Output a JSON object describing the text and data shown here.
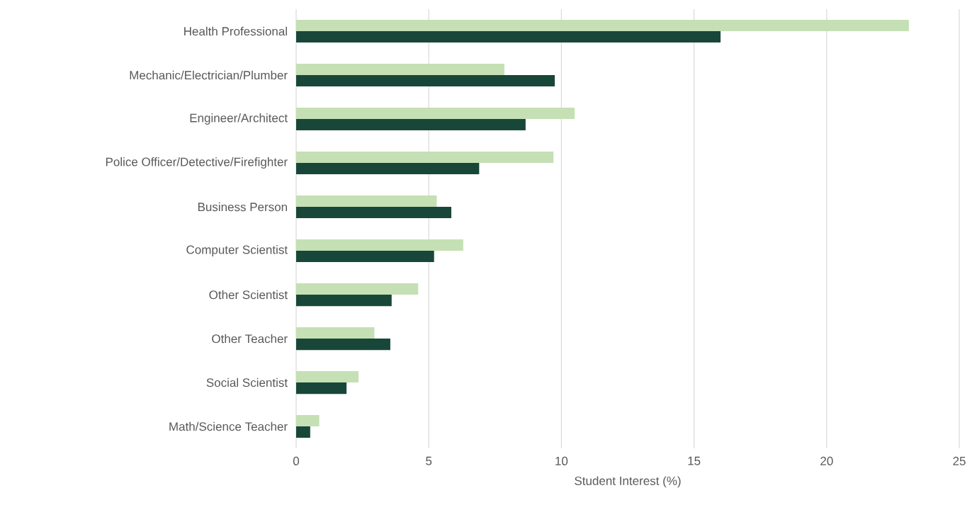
{
  "chart_data": {
    "type": "bar",
    "orientation": "horizontal",
    "xlabel": "Student Interest (%)",
    "categories": [
      "Health Professional",
      "Mechanic/Electrician/Plumber",
      "Engineer/Architect",
      "Police Officer/Detective/Firefighter",
      "Business Person",
      "Computer Scientist",
      "Other Scientist",
      "Other Teacher",
      "Social Scientist",
      "Math/Science Teacher"
    ],
    "series": [
      {
        "color": "#c5e0b4",
        "values": [
          23.1,
          7.85,
          10.5,
          9.7,
          5.3,
          6.3,
          4.6,
          2.95,
          2.35,
          0.87
        ]
      },
      {
        "color": "#18473a",
        "values": [
          16.0,
          9.75,
          8.65,
          6.9,
          5.85,
          5.2,
          3.6,
          3.55,
          1.9,
          0.53
        ]
      }
    ],
    "xlim": [
      0,
      25
    ],
    "xticks": [
      0,
      5,
      10,
      15,
      20,
      25
    ],
    "grid": "x"
  }
}
